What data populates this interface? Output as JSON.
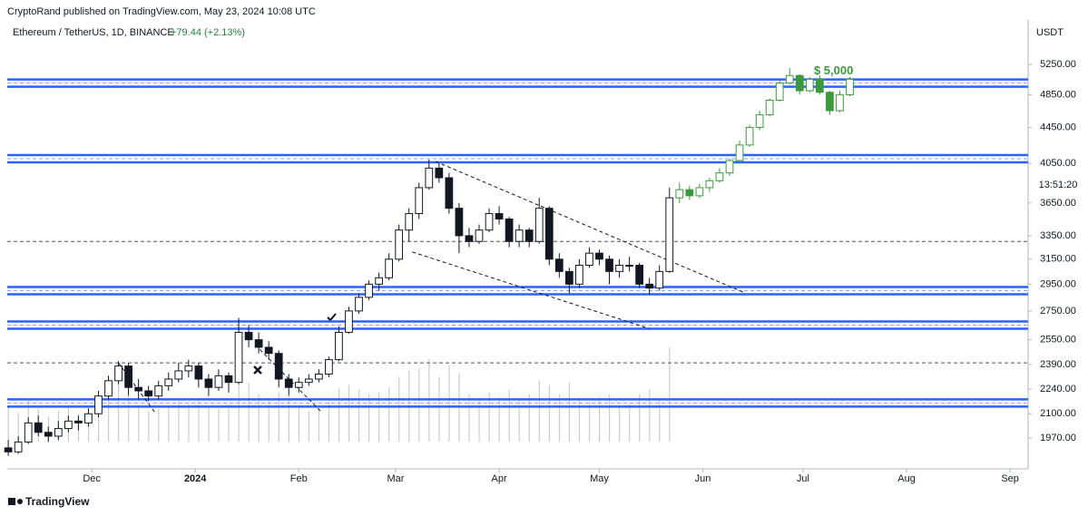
{
  "chart_data": {
    "type": "candlestick",
    "publisher": "CryptoRand published on TradingView.com, May 23, 2024 10:08 UTC",
    "title": "Ethereum / TetherUS, 1D, BINANCE",
    "change": "+79.44 (+2.13%)",
    "currency": "USDT",
    "countdown": "13:51:20",
    "brand": "TradingView",
    "annotation": {
      "text": "$ 5,000",
      "x": 243,
      "y": 5000
    },
    "log_scale": true,
    "up_color": "#ffffff",
    "down_color": "#131722",
    "outline_color": "#131722",
    "x": [
      5,
      8,
      11,
      14,
      17,
      20,
      23,
      26,
      29,
      32,
      35,
      38,
      41,
      44,
      47,
      50,
      53,
      56,
      59,
      62,
      65,
      68,
      71,
      74,
      77,
      80,
      83,
      86,
      89,
      92,
      95,
      98,
      101,
      104,
      107,
      110,
      113,
      116,
      119,
      122,
      125,
      128,
      131,
      134,
      137,
      140,
      143,
      146,
      149,
      152,
      155,
      158,
      161,
      164,
      167,
      170,
      173,
      176,
      179,
      182,
      185,
      188,
      191,
      194,
      197,
      200,
      203
    ],
    "open": [
      1920,
      1900,
      1950,
      2050,
      2000,
      1980,
      2020,
      2060,
      2050,
      2100,
      2200,
      2290,
      2380,
      2250,
      2230,
      2200,
      2260,
      2300,
      2350,
      2380,
      2300,
      2250,
      2320,
      2280,
      2600,
      2550,
      2500,
      2460,
      2300,
      2250,
      2280,
      2300,
      2330,
      2420,
      2600,
      2750,
      2850,
      2950,
      3000,
      3150,
      3400,
      3550,
      3800,
      4000,
      3900,
      3600,
      3350,
      3300,
      3400,
      3550,
      3500,
      3300,
      3400,
      3300,
      3600,
      3150,
      3050,
      2950,
      3100,
      3200,
      3150,
      3050,
      3100,
      3100,
      2950,
      2920,
      3050
    ],
    "high": [
      1960,
      1980,
      2080,
      2090,
      2030,
      2060,
      2090,
      2090,
      2130,
      2230,
      2320,
      2410,
      2400,
      2300,
      2260,
      2290,
      2340,
      2400,
      2420,
      2400,
      2330,
      2360,
      2340,
      2700,
      2650,
      2600,
      2540,
      2480,
      2330,
      2310,
      2330,
      2360,
      2440,
      2640,
      2780,
      2880,
      2980,
      3040,
      3200,
      3450,
      3600,
      3850,
      4090,
      4050,
      3950,
      3650,
      3420,
      3450,
      3600,
      3620,
      3520,
      3450,
      3420,
      3700,
      3620,
      3200,
      3080,
      3150,
      3250,
      3230,
      3180,
      3150,
      3170,
      3120,
      3000,
      3100,
      3800
    ],
    "low": [
      1880,
      1890,
      1940,
      1980,
      1950,
      1960,
      2000,
      2010,
      2030,
      2080,
      2180,
      2270,
      2200,
      2180,
      2170,
      2180,
      2230,
      2280,
      2310,
      2250,
      2200,
      2230,
      2220,
      2270,
      2500,
      2460,
      2420,
      2250,
      2200,
      2220,
      2260,
      2280,
      2310,
      2410,
      2590,
      2730,
      2830,
      2900,
      2980,
      3130,
      3300,
      3500,
      3780,
      3850,
      3550,
      3200,
      3250,
      3280,
      3380,
      3450,
      3250,
      3250,
      3250,
      3280,
      3100,
      3000,
      2880,
      2920,
      3080,
      3100,
      2950,
      3000,
      3050,
      2920,
      2870,
      2900,
      3040
    ],
    "close": [
      1900,
      1950,
      2050,
      2000,
      1980,
      2020,
      2060,
      2050,
      2100,
      2200,
      2290,
      2380,
      2250,
      2230,
      2200,
      2260,
      2300,
      2350,
      2380,
      2300,
      2250,
      2320,
      2280,
      2600,
      2550,
      2500,
      2460,
      2300,
      2250,
      2280,
      2300,
      2330,
      2420,
      2600,
      2750,
      2850,
      2950,
      3000,
      3150,
      3400,
      3550,
      3800,
      4000,
      3900,
      3600,
      3350,
      3300,
      3400,
      3550,
      3500,
      3300,
      3400,
      3300,
      3600,
      3150,
      3050,
      2950,
      3100,
      3200,
      3150,
      3050,
      3100,
      3100,
      2950,
      2920,
      3050,
      3700
    ],
    "volume": [
      30,
      25,
      35,
      28,
      22,
      26,
      30,
      24,
      28,
      40,
      45,
      50,
      38,
      30,
      26,
      28,
      30,
      34,
      32,
      36,
      30,
      28,
      32,
      75,
      50,
      40,
      35,
      42,
      38,
      30,
      26,
      28,
      34,
      45,
      48,
      44,
      40,
      42,
      46,
      55,
      60,
      62,
      70,
      55,
      65,
      58,
      40,
      36,
      42,
      38,
      44,
      36,
      40,
      52,
      48,
      40,
      50,
      36,
      34,
      38,
      40,
      30,
      32,
      40,
      44,
      36,
      80
    ],
    "vlim": [
      0,
      100
    ],
    "projection": {
      "color": "#3a9a3a",
      "x": [
        206,
        209,
        212,
        215,
        218,
        221,
        224,
        227,
        230,
        233,
        236,
        239,
        242,
        245,
        248,
        251,
        254,
        257
      ],
      "open": [
        3700,
        3780,
        3720,
        3800,
        3870,
        3950,
        4080,
        4250,
        4450,
        4600,
        4780,
        5000,
        5100,
        4900,
        5050,
        4880,
        4650,
        4850
      ],
      "high": [
        3850,
        3820,
        3840,
        3900,
        4000,
        4100,
        4300,
        4480,
        4650,
        4800,
        5050,
        5200,
        5120,
        5080,
        5100,
        4900,
        4900,
        5080
      ],
      "low": [
        3650,
        3680,
        3700,
        3760,
        3850,
        3920,
        4060,
        4230,
        4420,
        4580,
        4760,
        4980,
        4850,
        4880,
        4850,
        4600,
        4630,
        4830
      ],
      "close": [
        3780,
        3720,
        3800,
        3870,
        3950,
        4080,
        4250,
        4450,
        4600,
        4780,
        5000,
        5100,
        4900,
        5050,
        4880,
        4650,
        4850,
        5050
      ]
    },
    "levels": [
      5000,
      4100,
      2900,
      2650,
      2160
    ],
    "level_color": "#2962ff",
    "dashed_levels": [
      3300,
      2400
    ],
    "trendlines": [
      {
        "x": [
          133,
          225
        ],
        "y": [
          4070,
          2890
        ]
      },
      {
        "x": [
          126,
          197
        ],
        "y": [
          3210,
          2625
        ]
      },
      {
        "x": [
          38,
          49
        ],
        "y": [
          2400,
          2105
        ]
      },
      {
        "x": [
          79,
          99
        ],
        "y": [
          2515,
          2105
        ]
      }
    ],
    "xlim": [
      4.7,
      310.4
    ],
    "xticks": [
      {
        "value": 30,
        "label": "Dec"
      },
      {
        "value": 61,
        "label": "2024"
      },
      {
        "value": 92,
        "label": "Feb"
      },
      {
        "value": 121,
        "label": "Mar"
      },
      {
        "value": 152,
        "label": "Apr"
      },
      {
        "value": 182,
        "label": "May"
      },
      {
        "value": 213,
        "label": "Jun"
      },
      {
        "value": 243,
        "label": "Jul"
      },
      {
        "value": 274,
        "label": "Aug"
      },
      {
        "value": 305,
        "label": "Sep"
      }
    ],
    "ylim": [
      1826,
      5900
    ],
    "yticks": [
      {
        "value": 5250,
        "label": "5250.00"
      },
      {
        "value": 4850,
        "label": "4850.00"
      },
      {
        "value": 4450,
        "label": "4450.00"
      },
      {
        "value": 4050,
        "label": "4050.00"
      },
      {
        "value": 3650,
        "label": "3650.00"
      },
      {
        "value": 3350,
        "label": "3350.00"
      },
      {
        "value": 3150,
        "label": "3150.00"
      },
      {
        "value": 2950,
        "label": "2950.00"
      },
      {
        "value": 2750,
        "label": "2750.00"
      },
      {
        "value": 2550,
        "label": "2550.00"
      },
      {
        "value": 2390,
        "label": "2390.00"
      },
      {
        "value": 2240,
        "label": "2240.00"
      },
      {
        "value": 2100,
        "label": "2100.00"
      },
      {
        "value": 1970,
        "label": "1970.00"
      }
    ]
  }
}
